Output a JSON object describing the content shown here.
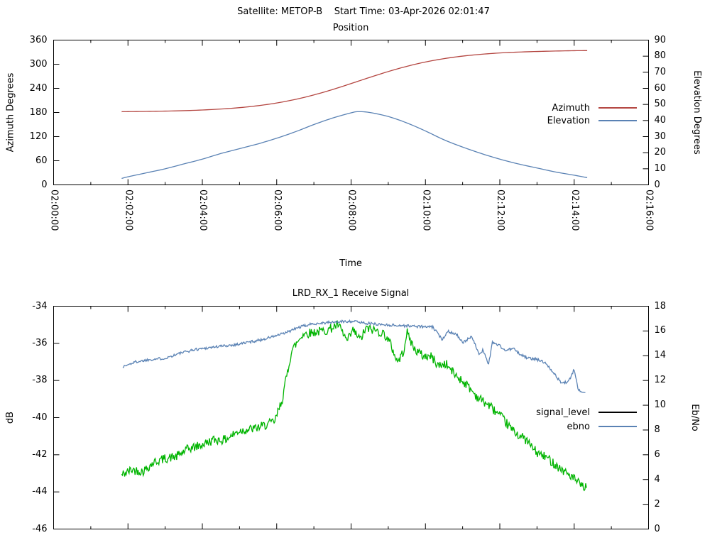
{
  "header": {
    "title": "Satellite: METOP-B    Start Time: 03-Apr-2026 02:01:47"
  },
  "colors": {
    "azimuth": "#b44641",
    "elevation": "#5a82b4",
    "signal_level_curve": "#00b400",
    "signal_level_key": "#000000",
    "ebno": "#5a82b4",
    "axis": "#000000"
  },
  "chart_data": [
    {
      "type": "line",
      "title": "Position",
      "xlabel": "Time",
      "ylabel": "Azimuth Degrees",
      "y2label": "Elevation Degrees",
      "x_minutes_range": [
        0,
        16
      ],
      "x_major_step": 2,
      "x_minor_step": 1,
      "x_tick_labels": [
        "02:00:00",
        "02:02:00",
        "02:04:00",
        "02:06:00",
        "02:08:00",
        "02:10:00",
        "02:12:00",
        "02:14:00",
        "02:16:00"
      ],
      "ylim": [
        0,
        360
      ],
      "y_step": 60,
      "y_tick_labels": [
        "0",
        "60",
        "120",
        "180",
        "240",
        "300",
        "360"
      ],
      "y2lim": [
        0,
        90
      ],
      "y2_step": 10,
      "y2_tick_labels": [
        "0",
        "10",
        "20",
        "30",
        "40",
        "50",
        "60",
        "70",
        "80",
        "90"
      ],
      "legend_position": "right-middle",
      "grid": false,
      "legend": [
        {
          "label": "Azimuth",
          "color": "#b44641"
        },
        {
          "label": "Elevation",
          "color": "#5a82b4"
        }
      ],
      "series": [
        {
          "name": "Azimuth",
          "axis": "y",
          "color": "#b44641",
          "noise": 0,
          "seed": 1,
          "x_minutes": [
            1.83,
            2,
            2.5,
            3,
            3.5,
            4,
            4.5,
            5,
            5.5,
            6,
            6.5,
            7,
            7.5,
            8,
            8.2,
            8.5,
            9,
            9.5,
            10,
            10.5,
            11,
            11.5,
            12,
            12.5,
            13,
            13.5,
            14,
            14.35
          ],
          "values": [
            181.9,
            182.1,
            182.6,
            183.4,
            184.5,
            186.2,
            188.6,
            192.0,
            196.9,
            203.6,
            212.5,
            223.7,
            237.0,
            251.9,
            258.0,
            267.2,
            281.8,
            294.8,
            305.5,
            313.9,
            320.2,
            324.7,
            328.0,
            330.2,
            331.7,
            332.8,
            333.6,
            333.9
          ]
        },
        {
          "name": "Elevation",
          "axis": "y2",
          "color": "#5a82b4",
          "noise": 0,
          "seed": 2,
          "x_minutes": [
            1.83,
            2,
            2.5,
            3,
            3.5,
            4,
            4.5,
            5,
            5.5,
            6,
            6.5,
            7,
            7.5,
            8,
            8.2,
            8.5,
            9,
            9.5,
            10,
            10.5,
            11,
            11.5,
            12,
            12.5,
            13,
            13.5,
            14,
            14.35
          ],
          "values": [
            4.0,
            5.0,
            7.5,
            10.0,
            13.0,
            16.0,
            19.5,
            22.5,
            25.5,
            29.0,
            33.0,
            37.5,
            41.5,
            44.8,
            45.5,
            45.0,
            42.5,
            38.5,
            33.5,
            28.0,
            23.5,
            19.5,
            16.0,
            13.0,
            10.5,
            8.0,
            6.0,
            4.5
          ]
        }
      ]
    },
    {
      "type": "line",
      "title": "LRD_RX_1 Receive Signal",
      "xlabel": "",
      "ylabel": "dB",
      "y2label": "Eb/No",
      "x_minutes_range": [
        0,
        16
      ],
      "x_major_step": 2,
      "x_minor_step": 1,
      "ylim": [
        -46,
        -34
      ],
      "y_step": 2,
      "y_tick_labels": [
        "-46",
        "-44",
        "-42",
        "-40",
        "-38",
        "-36",
        "-34"
      ],
      "y2lim": [
        0,
        18
      ],
      "y2_step": 2,
      "y2_tick_labels": [
        "0",
        "2",
        "4",
        "6",
        "8",
        "10",
        "12",
        "14",
        "16",
        "18"
      ],
      "legend_position": "right-middle",
      "grid": false,
      "legend": [
        {
          "label": "signal_level",
          "color": "#000000"
        },
        {
          "label": "ebno",
          "color": "#5a82b4"
        }
      ],
      "series": [
        {
          "name": "signal_level",
          "axis": "y",
          "color": "#00b400",
          "noise": 0.25,
          "seed": 42,
          "x_minutes": [
            1.83,
            2.1,
            2.4,
            2.7,
            3.0,
            3.3,
            3.6,
            3.95,
            4.3,
            4.6,
            5.0,
            5.4,
            5.7,
            5.95,
            6.15,
            6.4,
            6.7,
            7.0,
            7.35,
            7.65,
            7.9,
            8.05,
            8.25,
            8.4,
            8.65,
            8.9,
            9.05,
            9.25,
            9.4,
            9.5,
            9.7,
            9.95,
            10.15,
            10.35,
            10.55,
            10.8,
            11.1,
            11.4,
            11.75,
            12.05,
            12.35,
            12.7,
            13.0,
            13.3,
            13.6,
            13.95,
            14.2,
            14.34
          ],
          "values": [
            -43.1,
            -42.8,
            -42.9,
            -42.4,
            -42.2,
            -42.1,
            -41.7,
            -41.5,
            -41.2,
            -41.2,
            -40.7,
            -40.6,
            -40.4,
            -40.2,
            -39.0,
            -36.4,
            -35.5,
            -35.4,
            -35.3,
            -35.0,
            -35.9,
            -35.3,
            -35.8,
            -35.2,
            -35.3,
            -35.5,
            -36.0,
            -37.0,
            -36.5,
            -35.4,
            -36.3,
            -36.7,
            -36.7,
            -37.2,
            -37.1,
            -37.7,
            -38.2,
            -38.9,
            -39.4,
            -40.0,
            -40.7,
            -41.2,
            -41.9,
            -42.2,
            -42.7,
            -43.2,
            -43.7,
            -43.8
          ]
        },
        {
          "name": "ebno",
          "axis": "y2",
          "color": "#5a82b4",
          "noise": 0.11,
          "seed": 1337,
          "x_minutes": [
            1.86,
            2.2,
            2.6,
            3.0,
            3.4,
            3.8,
            4.3,
            4.9,
            5.6,
            6.2,
            6.6,
            7.0,
            7.5,
            8.0,
            8.5,
            8.9,
            9.6,
            10.2,
            10.45,
            10.6,
            10.85,
            11.0,
            11.25,
            11.45,
            11.55,
            11.7,
            11.8,
            12.0,
            12.15,
            12.35,
            12.55,
            12.75,
            13.0,
            13.25,
            13.45,
            13.65,
            13.85,
            14.0,
            14.1,
            14.3
          ],
          "values": [
            13.1,
            13.5,
            13.7,
            13.8,
            14.2,
            14.5,
            14.7,
            14.9,
            15.3,
            15.8,
            16.3,
            16.6,
            16.7,
            16.8,
            16.6,
            16.5,
            16.4,
            16.3,
            15.3,
            16.0,
            15.7,
            15.0,
            15.6,
            14.0,
            14.5,
            13.3,
            15.1,
            14.8,
            14.4,
            14.6,
            14.1,
            13.8,
            13.7,
            13.4,
            12.6,
            11.8,
            11.9,
            12.9,
            11.3,
            11.0
          ]
        }
      ]
    }
  ]
}
